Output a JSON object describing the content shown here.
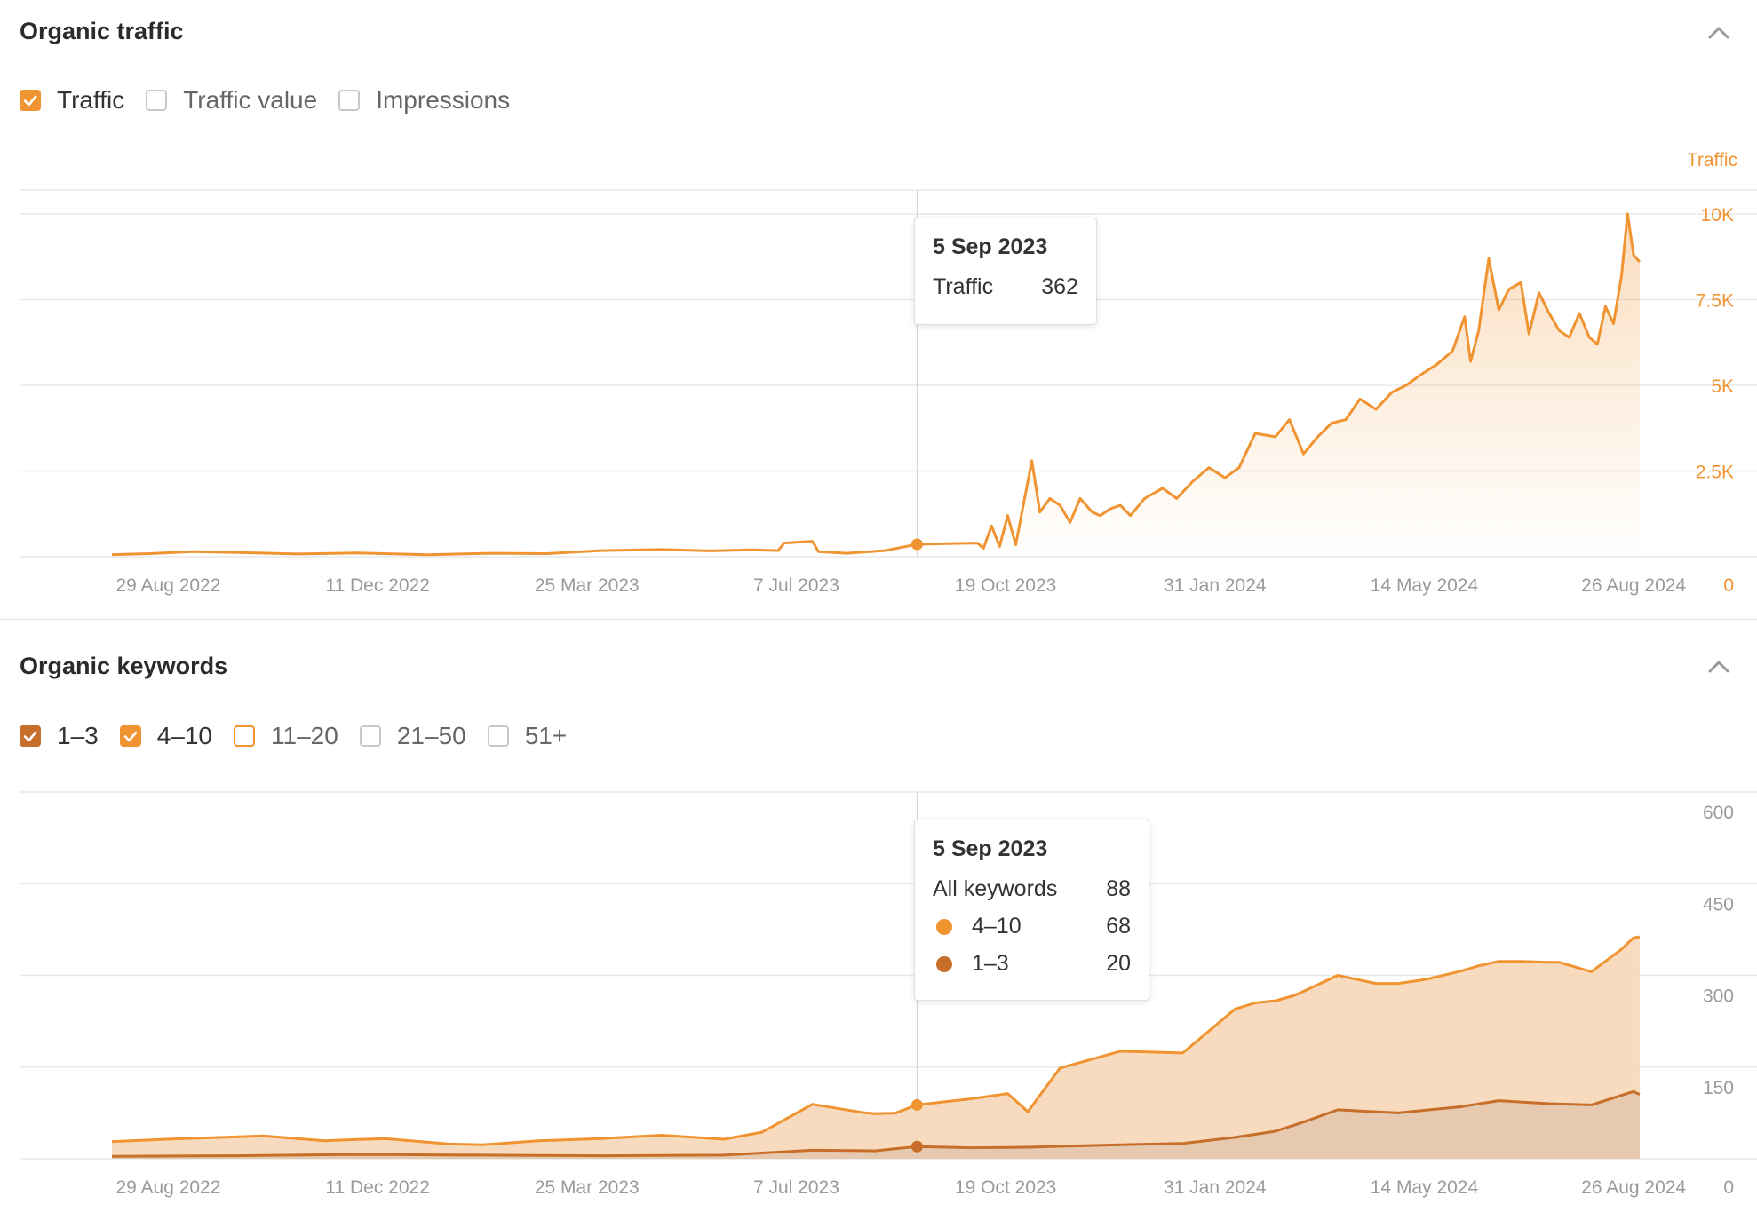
{
  "colors": {
    "traffic": "#f09432",
    "kw_4_10": "#f09432",
    "kw_1_3": "#c76f2a",
    "grid": "#e8e8e8",
    "axis_text_gray": "#9a9a9a",
    "axis_text_orange": "#f09432"
  },
  "traffic_panel": {
    "title": "Organic traffic",
    "collapse_icon": "chevron-up-icon",
    "legend": [
      {
        "label": "Traffic",
        "checked": true,
        "color": "#f09432"
      },
      {
        "label": "Traffic value",
        "checked": false,
        "color": ""
      },
      {
        "label": "Impressions",
        "checked": false,
        "color": ""
      }
    ],
    "tooltip": {
      "date": "5 Sep 2023",
      "rows": [
        {
          "label": "Traffic",
          "value": "362"
        }
      ]
    }
  },
  "keywords_panel": {
    "title": "Organic keywords",
    "collapse_icon": "chevron-up-icon",
    "legend": [
      {
        "label": "1–3",
        "checked": true,
        "color": "#c76f2a"
      },
      {
        "label": "4–10",
        "checked": true,
        "color": "#f09432"
      },
      {
        "label": "11–20",
        "checked": false,
        "color": "#f09432"
      },
      {
        "label": "21–50",
        "checked": false,
        "color": ""
      },
      {
        "label": "51+",
        "checked": false,
        "color": ""
      }
    ],
    "tooltip": {
      "date": "5 Sep 2023",
      "rows": [
        {
          "label": "All keywords",
          "value": "88",
          "dot": ""
        },
        {
          "label": "4–10",
          "value": "68",
          "dot": "#f09432"
        },
        {
          "label": "1–3",
          "value": "20",
          "dot": "#c76f2a"
        }
      ]
    }
  },
  "chart_data": [
    {
      "type": "area",
      "title": "Organic traffic",
      "ylabel": "Traffic",
      "x_tick_labels": [
        "29 Aug 2022",
        "11 Dec 2022",
        "25 Mar 2023",
        "7 Jul 2023",
        "19 Oct 2023",
        "31 Jan 2024",
        "14 May 2024",
        "26 Aug 2024"
      ],
      "y_tick_labels": [
        "0",
        "2.5K",
        "5K",
        "7.5K",
        "10K"
      ],
      "ylim": [
        0,
        10000
      ],
      "xlim": [
        "2022-08-01",
        "2024-09-02"
      ],
      "grid": true,
      "legend_position": "top-left",
      "highlight": {
        "x": "2023-09-05",
        "y": 362
      },
      "series": [
        {
          "name": "Traffic",
          "x": [
            "2022-08-01",
            "2022-08-20",
            "2022-09-10",
            "2022-10-05",
            "2022-11-01",
            "2022-12-01",
            "2023-01-05",
            "2023-02-05",
            "2023-03-05",
            "2023-04-01",
            "2023-05-01",
            "2023-05-25",
            "2023-06-15",
            "2023-06-28",
            "2023-07-01",
            "2023-07-15",
            "2023-07-18",
            "2023-08-01",
            "2023-08-20",
            "2023-09-05",
            "2023-09-20",
            "2023-10-05",
            "2023-10-08",
            "2023-10-12",
            "2023-10-16",
            "2023-10-20",
            "2023-10-24",
            "2023-11-01",
            "2023-11-05",
            "2023-11-10",
            "2023-11-15",
            "2023-11-20",
            "2023-11-25",
            "2023-12-01",
            "2023-12-05",
            "2023-12-10",
            "2023-12-15",
            "2023-12-20",
            "2023-12-27",
            "2024-01-05",
            "2024-01-12",
            "2024-01-20",
            "2024-01-28",
            "2024-02-05",
            "2024-02-12",
            "2024-02-20",
            "2024-03-01",
            "2024-03-08",
            "2024-03-15",
            "2024-03-22",
            "2024-03-29",
            "2024-04-05",
            "2024-04-12",
            "2024-04-20",
            "2024-04-28",
            "2024-05-05",
            "2024-05-12",
            "2024-05-20",
            "2024-05-28",
            "2024-06-03",
            "2024-06-06",
            "2024-06-10",
            "2024-06-15",
            "2024-06-20",
            "2024-06-25",
            "2024-07-01",
            "2024-07-05",
            "2024-07-10",
            "2024-07-15",
            "2024-07-20",
            "2024-07-25",
            "2024-07-30",
            "2024-08-04",
            "2024-08-08",
            "2024-08-12",
            "2024-08-16",
            "2024-08-20",
            "2024-08-23",
            "2024-08-26",
            "2024-08-29"
          ],
          "values": [
            60,
            90,
            150,
            120,
            80,
            110,
            60,
            100,
            90,
            180,
            210,
            170,
            200,
            180,
            400,
            450,
            150,
            100,
            180,
            362,
            380,
            400,
            250,
            900,
            300,
            1200,
            350,
            2800,
            1300,
            1700,
            1500,
            1000,
            1700,
            1300,
            1200,
            1400,
            1500,
            1200,
            1700,
            2000,
            1700,
            2200,
            2600,
            2300,
            2600,
            3600,
            3500,
            4000,
            3000,
            3500,
            3900,
            4000,
            4600,
            4300,
            4800,
            5000,
            5300,
            5600,
            6000,
            7000,
            5700,
            6600,
            8700,
            7200,
            7800,
            8000,
            6500,
            7700,
            7100,
            6600,
            6400,
            7100,
            6400,
            6200,
            7300,
            6800,
            8200,
            10000,
            8800,
            8600
          ]
        }
      ]
    },
    {
      "type": "area",
      "title": "Organic keywords",
      "ylabel": "",
      "x_tick_labels": [
        "29 Aug 2022",
        "11 Dec 2022",
        "25 Mar 2023",
        "7 Jul 2023",
        "19 Oct 2023",
        "31 Jan 2024",
        "14 May 2024",
        "26 Aug 2024"
      ],
      "y_tick_labels": [
        "0",
        "150",
        "300",
        "450",
        "600"
      ],
      "ylim": [
        0,
        600
      ],
      "xlim": [
        "2022-08-01",
        "2024-09-02"
      ],
      "grid": true,
      "legend_position": "top-left",
      "highlight": {
        "x": "2023-09-05",
        "values": {
          "4–10": 68,
          "1–3": 20
        }
      },
      "stacked": true,
      "series": [
        {
          "name": "1–3",
          "x": [
            "2022-08-01",
            "2022-10-01",
            "2022-12-01",
            "2023-02-01",
            "2023-04-01",
            "2023-06-01",
            "2023-07-15",
            "2023-08-15",
            "2023-09-05",
            "2023-10-01",
            "2023-11-01",
            "2023-12-15",
            "2024-01-15",
            "2024-02-10",
            "2024-03-01",
            "2024-03-15",
            "2024-04-01",
            "2024-05-01",
            "2024-06-01",
            "2024-06-20",
            "2024-07-15",
            "2024-08-05",
            "2024-08-26",
            "2024-08-29"
          ],
          "values": [
            4,
            5,
            7,
            6,
            5,
            6,
            14,
            13,
            20,
            18,
            19,
            23,
            25,
            35,
            45,
            60,
            80,
            75,
            85,
            95,
            90,
            88,
            110,
            105
          ]
        },
        {
          "name": "4–10",
          "x": [
            "2022-08-01",
            "2022-09-01",
            "2022-10-15",
            "2022-11-15",
            "2022-12-15",
            "2023-01-15",
            "2023-02-01",
            "2023-03-01",
            "2023-04-01",
            "2023-05-01",
            "2023-06-01",
            "2023-06-20",
            "2023-07-15",
            "2023-08-10",
            "2023-08-25",
            "2023-09-05",
            "2023-09-25",
            "2023-10-20",
            "2023-10-30",
            "2023-11-15",
            "2023-12-15",
            "2024-01-15",
            "2024-02-10",
            "2024-02-20",
            "2024-03-10",
            "2024-04-01",
            "2024-04-20",
            "2024-05-15",
            "2024-06-10",
            "2024-07-01",
            "2024-07-20",
            "2024-08-05",
            "2024-08-20",
            "2024-08-29"
          ],
          "values": [
            24,
            28,
            32,
            23,
            26,
            18,
            17,
            24,
            28,
            33,
            26,
            34,
            75,
            62,
            58,
            68,
            77,
            88,
            58,
            128,
            153,
            148,
            210,
            215,
            212,
            220,
            210,
            214,
            226,
            230,
            232,
            218,
            239,
            258
          ]
        }
      ]
    }
  ]
}
